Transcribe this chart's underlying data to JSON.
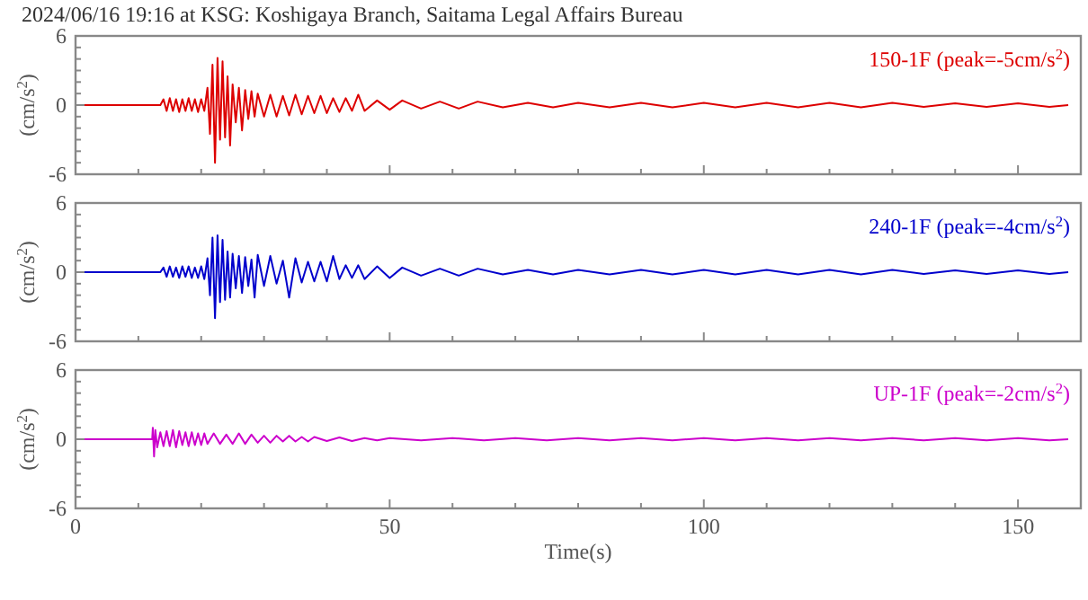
{
  "chart_data": [
    {
      "type": "line",
      "title": "2024/06/16 19:16 at KSG: Koshigaya Branch, Saitama Legal Affairs Bureau",
      "ylabel": "(cm/s$^{2}$)",
      "annotations": [
        "150-1F (peak=-5cm/s$^{2}$)"
      ],
      "tick_labels": "y",
      "xlim": [
        0,
        160
      ],
      "xticks": [
        0,
        {
          "value": 10,
          "label": null
        },
        {
          "value": 20,
          "label": null
        },
        {
          "value": 30,
          "label": null
        },
        {
          "value": 40,
          "label": null
        },
        50,
        {
          "value": 60,
          "label": null
        },
        {
          "value": 70,
          "label": null
        },
        {
          "value": 80,
          "label": null
        },
        {
          "value": 90,
          "label": null
        },
        100,
        {
          "value": 110,
          "label": null
        },
        {
          "value": 120,
          "label": null
        },
        {
          "value": 130,
          "label": null
        },
        {
          "value": 140,
          "label": null
        },
        150,
        {
          "value": 160,
          "label": null
        }
      ],
      "ylim": [
        -6,
        6
      ],
      "yticks": [
        -6,
        {
          "value": -5,
          "label": null
        },
        {
          "value": -4,
          "label": null
        },
        {
          "value": -3,
          "label": null
        },
        {
          "value": -2,
          "label": null
        },
        {
          "value": -1,
          "label": null
        },
        0,
        {
          "value": 1,
          "label": null
        },
        {
          "value": 2,
          "label": null
        },
        {
          "value": 3,
          "label": null
        },
        {
          "value": 4,
          "label": null
        },
        {
          "value": 5,
          "label": null
        },
        6
      ],
      "series": [
        {
          "color": "#dd0000",
          "x": [
            0,
            13.5,
            14,
            14.5,
            15,
            15.5,
            16,
            16.5,
            17,
            17.5,
            18,
            18.5,
            19,
            19.5,
            20,
            20.5,
            21,
            21.4,
            21.8,
            22.2,
            22.6,
            23,
            23.4,
            23.8,
            24.2,
            24.6,
            25,
            25.5,
            26,
            26.5,
            27,
            27.5,
            28,
            28.5,
            29,
            30,
            31,
            32,
            33,
            34,
            35,
            36,
            37,
            38,
            39,
            40,
            41,
            42,
            43,
            44,
            45,
            46,
            48,
            50,
            52,
            55,
            58,
            61,
            64,
            68,
            72,
            76,
            80,
            85,
            90,
            95,
            100,
            105,
            110,
            115,
            120,
            125,
            130,
            135,
            140,
            145,
            150,
            155,
            158
          ],
          "values": [
            0,
            0,
            0.5,
            -0.5,
            0.6,
            -0.5,
            0.5,
            -0.6,
            0.5,
            -0.5,
            0.6,
            -0.5,
            0.5,
            -0.6,
            0.5,
            -0.5,
            1.5,
            -2.5,
            3.5,
            -5,
            4.1,
            -3,
            3.8,
            -2.8,
            2.5,
            -3.5,
            1.8,
            -1.5,
            1.5,
            -2.2,
            1.3,
            -1.2,
            1.2,
            -1,
            1,
            -1,
            0.9,
            -1,
            0.8,
            -0.9,
            0.9,
            -0.8,
            0.8,
            -0.7,
            0.8,
            -0.7,
            0.6,
            -0.6,
            0.6,
            -0.5,
            0.9,
            -0.5,
            0.4,
            -0.4,
            0.4,
            -0.3,
            0.3,
            -0.3,
            0.3,
            -0.2,
            0.2,
            -0.2,
            0.2,
            -0.2,
            0.2,
            -0.2,
            0.2,
            -0.2,
            0.2,
            -0.2,
            0.2,
            -0.2,
            0.2,
            -0.15,
            0.15,
            -0.15,
            0.15,
            -0.15,
            0
          ]
        }
      ]
    },
    {
      "type": "line",
      "ylabel": "(cm/s$^{2}$)",
      "annotations": [
        "240-1F (peak=-4cm/s$^{2}$)"
      ],
      "tick_labels": "y",
      "xlim": [
        0,
        160
      ],
      "xticks": [
        0,
        {
          "value": 10,
          "label": null
        },
        {
          "value": 20,
          "label": null
        },
        {
          "value": 30,
          "label": null
        },
        {
          "value": 40,
          "label": null
        },
        50,
        {
          "value": 60,
          "label": null
        },
        {
          "value": 70,
          "label": null
        },
        {
          "value": 80,
          "label": null
        },
        {
          "value": 90,
          "label": null
        },
        100,
        {
          "value": 110,
          "label": null
        },
        {
          "value": 120,
          "label": null
        },
        {
          "value": 130,
          "label": null
        },
        {
          "value": 140,
          "label": null
        },
        150,
        {
          "value": 160,
          "label": null
        }
      ],
      "ylim": [
        -6,
        6
      ],
      "yticks": [
        -6,
        {
          "value": -5,
          "label": null
        },
        {
          "value": -4,
          "label": null
        },
        {
          "value": -3,
          "label": null
        },
        {
          "value": -2,
          "label": null
        },
        {
          "value": -1,
          "label": null
        },
        0,
        {
          "value": 1,
          "label": null
        },
        {
          "value": 2,
          "label": null
        },
        {
          "value": 3,
          "label": null
        },
        {
          "value": 4,
          "label": null
        },
        {
          "value": 5,
          "label": null
        },
        6
      ],
      "series": [
        {
          "color": "#0000cc",
          "x": [
            0,
            13.5,
            14,
            14.5,
            15,
            15.5,
            16,
            16.5,
            17,
            17.5,
            18,
            18.5,
            19,
            19.5,
            20,
            20.5,
            21,
            21.4,
            21.8,
            22.2,
            22.6,
            23,
            23.4,
            23.8,
            24.2,
            24.6,
            25,
            25.5,
            26,
            26.5,
            27,
            27.5,
            28,
            28.5,
            29,
            30,
            31,
            32,
            33,
            34,
            35,
            36,
            37,
            38,
            39,
            40,
            41,
            42,
            43,
            44,
            45,
            46,
            48,
            50,
            52,
            55,
            58,
            61,
            64,
            68,
            72,
            76,
            80,
            85,
            90,
            95,
            100,
            105,
            110,
            115,
            120,
            125,
            130,
            135,
            140,
            145,
            150,
            155,
            158
          ],
          "values": [
            0,
            0,
            0.4,
            -0.4,
            0.5,
            -0.4,
            0.4,
            -0.5,
            0.5,
            -0.4,
            0.5,
            -0.5,
            0.4,
            -0.5,
            0.5,
            -0.6,
            1.2,
            -2,
            3,
            -4,
            3.2,
            -2.6,
            2.8,
            -2.4,
            1.8,
            -2.2,
            1.6,
            -1.4,
            1.4,
            -1.8,
            1.3,
            -1.2,
            1.1,
            -2.2,
            1.5,
            -1.2,
            1.4,
            -1,
            1,
            -2.2,
            1.2,
            -0.9,
            0.9,
            -0.8,
            0.9,
            -0.8,
            1.4,
            -0.6,
            0.6,
            -0.5,
            0.6,
            -0.6,
            0.5,
            -0.5,
            0.4,
            -0.3,
            0.3,
            -0.3,
            0.3,
            -0.2,
            0.2,
            -0.2,
            0.2,
            -0.2,
            0.2,
            -0.2,
            0.2,
            -0.2,
            0.2,
            -0.2,
            0.2,
            -0.2,
            0.2,
            -0.15,
            0.15,
            -0.15,
            0.15,
            -0.15,
            0
          ]
        }
      ]
    },
    {
      "type": "line",
      "xlabel": "Time(s)",
      "ylabel": "(cm/s$^{2}$)",
      "annotations": [
        "UP-1F (peak=-2cm/s$^{2}$)"
      ],
      "xlim": [
        0,
        160
      ],
      "xticks": [
        0,
        {
          "value": 10,
          "label": null
        },
        {
          "value": 20,
          "label": null
        },
        {
          "value": 30,
          "label": null
        },
        {
          "value": 40,
          "label": null
        },
        50,
        {
          "value": 60,
          "label": null
        },
        {
          "value": 70,
          "label": null
        },
        {
          "value": 80,
          "label": null
        },
        {
          "value": 90,
          "label": null
        },
        100,
        {
          "value": 110,
          "label": null
        },
        {
          "value": 120,
          "label": null
        },
        {
          "value": 130,
          "label": null
        },
        {
          "value": 140,
          "label": null
        },
        150,
        {
          "value": 160,
          "label": null
        }
      ],
      "ylim": [
        -6,
        6
      ],
      "yticks": [
        -6,
        {
          "value": -5,
          "label": null
        },
        {
          "value": -4,
          "label": null
        },
        {
          "value": -3,
          "label": null
        },
        {
          "value": -2,
          "label": null
        },
        {
          "value": -1,
          "label": null
        },
        0,
        {
          "value": 1,
          "label": null
        },
        {
          "value": 2,
          "label": null
        },
        {
          "value": 3,
          "label": null
        },
        {
          "value": 4,
          "label": null
        },
        {
          "value": 5,
          "label": null
        },
        6
      ],
      "series": [
        {
          "color": "#cc00cc",
          "x": [
            0,
            12.2,
            12.3,
            12.5,
            12.7,
            13,
            13.5,
            14,
            14.5,
            15,
            15.5,
            16,
            16.5,
            17,
            17.5,
            18,
            18.5,
            19,
            19.5,
            20,
            20.5,
            21,
            22,
            23,
            24,
            25,
            26,
            27,
            28,
            29,
            30,
            31,
            32,
            33,
            34,
            35,
            36,
            37,
            38,
            40,
            42,
            44,
            46,
            48,
            50,
            55,
            60,
            65,
            70,
            75,
            80,
            85,
            90,
            95,
            100,
            105,
            110,
            115,
            120,
            125,
            130,
            135,
            140,
            145,
            150,
            155,
            158
          ],
          "values": [
            0,
            0,
            1,
            -1.5,
            0.8,
            -0.7,
            0.6,
            -0.6,
            0.7,
            -0.6,
            0.8,
            -0.7,
            0.7,
            -0.5,
            0.6,
            -0.6,
            0.6,
            -0.5,
            0.5,
            -0.5,
            0.5,
            -0.4,
            0.5,
            -0.4,
            0.4,
            -0.4,
            0.5,
            -0.4,
            0.4,
            -0.3,
            0.3,
            -0.3,
            0.3,
            -0.2,
            0.3,
            -0.2,
            0.2,
            -0.2,
            0.2,
            -0.15,
            0.15,
            -0.15,
            0.1,
            -0.1,
            0.1,
            -0.1,
            0.1,
            -0.1,
            0.1,
            -0.1,
            0.1,
            -0.1,
            0.1,
            -0.1,
            0.1,
            -0.1,
            0.1,
            -0.1,
            0.1,
            -0.1,
            0.1,
            -0.1,
            0.1,
            -0.1,
            0.1,
            -0.1,
            0
          ]
        }
      ]
    }
  ]
}
